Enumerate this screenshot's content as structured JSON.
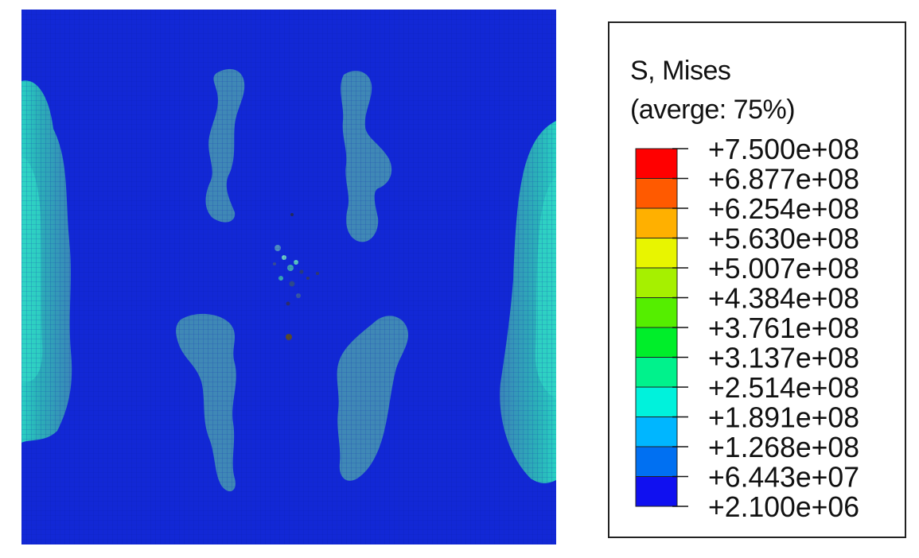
{
  "legend": {
    "title_line1": "S, Mises",
    "title_line2": "(averge: 75%)",
    "colors": [
      "#ff0000",
      "#ff5a00",
      "#ffb000",
      "#e8f500",
      "#a6f000",
      "#55ee00",
      "#00ee2a",
      "#00f28c",
      "#00f2dc",
      "#00b6ff",
      "#0070f2",
      "#1010f0"
    ],
    "ticks": [
      "+7.500e+08",
      "+6.877e+08",
      "+6.254e+08",
      "+5.630e+08",
      "+5.007e+08",
      "+4.384e+08",
      "+3.761e+08",
      "+3.137e+08",
      "+2.514e+08",
      "+1.891e+08",
      "+1.268e+08",
      "+6.443e+07",
      "+2.100e+06"
    ]
  },
  "contour": {
    "background_color": "#1228d6",
    "mesh_color": "#0a1ea8",
    "edge_band_color": "#27a7b8",
    "blob_color": "#3f88b6"
  }
}
